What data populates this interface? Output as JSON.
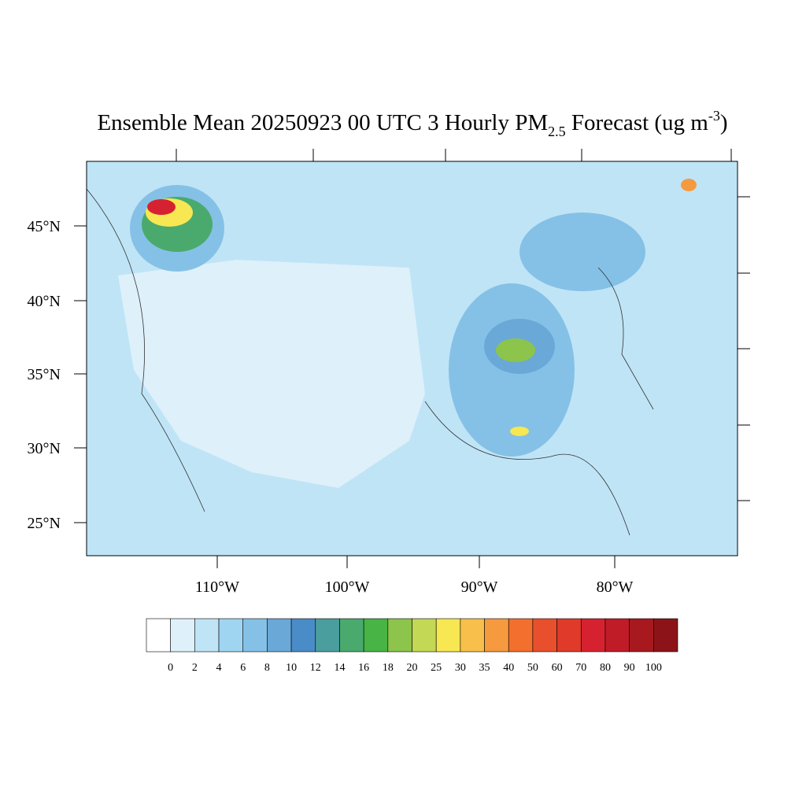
{
  "title": {
    "main": "Ensemble Mean 20250923 00 UTC 3 Hourly PM",
    "subscript": "2.5",
    "rest": " Forecast (ug m",
    "superscript": "-3",
    "end": ")"
  },
  "latitude_labels": [
    "45°N",
    "40°N",
    "35°N",
    "30°N",
    "25°N"
  ],
  "longitude_labels": [
    "110°W",
    "100°W",
    "90°W",
    "80°W"
  ],
  "colorbar": {
    "levels": [
      0,
      2,
      4,
      6,
      8,
      10,
      12,
      14,
      16,
      18,
      20,
      25,
      30,
      35,
      40,
      50,
      60,
      70,
      80,
      90,
      100
    ],
    "colors": [
      "#ffffff",
      "#def0fa",
      "#bfe4f6",
      "#a0d5f1",
      "#85c1e6",
      "#6aa8d8",
      "#4a8cc7",
      "#4a9e9e",
      "#4aaa6e",
      "#48b446",
      "#8cc44c",
      "#c3d855",
      "#f7e752",
      "#f8c04a",
      "#f59a3f",
      "#f36f2e",
      "#e8502d",
      "#e03a2a",
      "#d62230",
      "#c01c27",
      "#a8191f",
      "#8c1418"
    ]
  }
}
